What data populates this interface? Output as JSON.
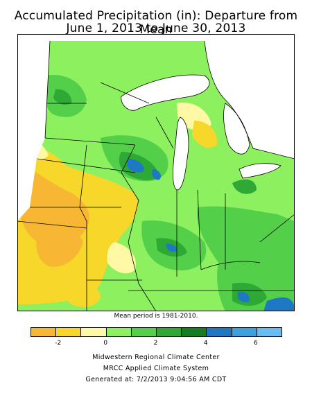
{
  "title_line1": "Accumulated Precipitation (in): Departure from Mean",
  "title_line2": "June 1, 2013 to June 30, 2013",
  "mean_period_note": "Mean period is 1981-2010.",
  "legend": {
    "colors": [
      "#f7b733",
      "#f6d72a",
      "#fff9a6",
      "#8cf05f",
      "#53cf4a",
      "#2ea936",
      "#117f22",
      "#1f78c4",
      "#3aa2e0",
      "#67bcf2"
    ],
    "tick_labels": [
      "-2",
      "0",
      "2",
      "4",
      "6"
    ]
  },
  "footer": {
    "line1": "Midwestern Regional Climate Center",
    "line2": "MRCC Applied Climate System",
    "line3": "Generated at: 7/2/2013 9:04:56 AM CDT"
  }
}
